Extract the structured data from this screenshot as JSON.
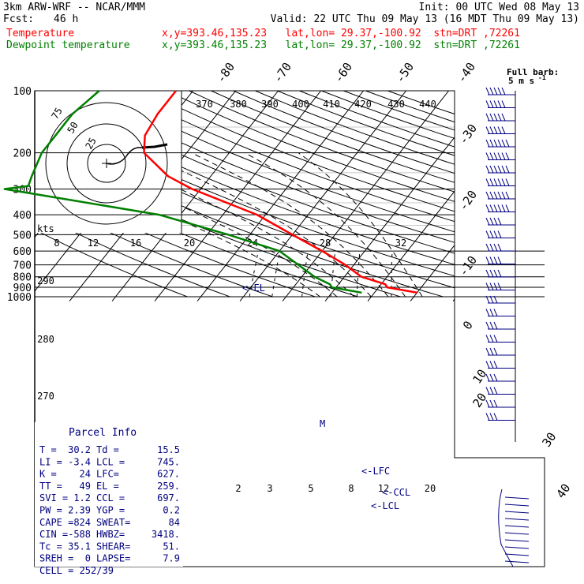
{
  "header": {
    "model": "3km ARW-WRF -- NCAR/MMM",
    "init": "Init: 00 UTC Wed 08 May 13",
    "fcst_label": "Fcst:",
    "fcst_value": "46 h",
    "valid": "Valid: 22 UTC Thu 09 May 13 (16 MDT Thu 09 May 13)",
    "temp_label": "Temperature",
    "temp_loc": "x,y=393.46,135.23   lat,lon= 29.37,-100.92  stn=DRT ,72261",
    "dew_label": "Dewpoint temperature",
    "dew_loc": "x,y=393.46,135.23   lat,lon= 29.37,-100.92  stn=DRT ,72261"
  },
  "colors": {
    "temperature": "#ff0000",
    "dewpoint": "#008000",
    "index_text": "#000080",
    "axes": "#000000"
  },
  "barb_legend": {
    "title": "Full barb:",
    "value": "5 m s",
    "superscript": "-1"
  },
  "parcel": {
    "title": "Parcel Info",
    "rows": [
      [
        "T  =",
        "30.2",
        "Td =",
        "15.5"
      ],
      [
        "LI =",
        "-3.4",
        "LCL =",
        "745."
      ],
      [
        "K  =",
        "24",
        "LFC=",
        "627."
      ],
      [
        "TT =",
        "49",
        "EL =",
        "259."
      ],
      [
        "SVI =",
        "1.2",
        "CCL =",
        "697."
      ],
      [
        "PW =",
        "2.39",
        "YGP =",
        "0.2"
      ],
      [
        "CAPE =",
        "824",
        "SWEAT=",
        "84"
      ],
      [
        "CIN =",
        "-588",
        "HWBZ=",
        "3418."
      ],
      [
        "Tc =",
        "35.1",
        "SHEAR=",
        "51."
      ],
      [
        "SREH =",
        "0",
        "LAPSE=",
        "7.9"
      ],
      [
        "CELL = 252/39",
        "",
        "",
        ""
      ]
    ]
  },
  "annotations": {
    "el": "<-EL",
    "lfc": "<-LFC",
    "ccl": "<-CCL",
    "lcl": "<-LCL",
    "m": "M"
  },
  "hodograph": {
    "kts_label": "kts",
    "ring_labels": [
      "75",
      "50",
      "25"
    ],
    "speed_labels": [
      "8",
      "12",
      "16",
      "20",
      "24",
      "28",
      "32"
    ]
  },
  "chart_data": {
    "type": "line",
    "title": "",
    "y_label": "",
    "pressure_levels_hPa": [
      100,
      200,
      300,
      400,
      500,
      600,
      700,
      800,
      900,
      1000
    ],
    "skewed_temperature_labels_C": [
      "-80",
      "-70",
      "-60",
      "-50",
      "-40",
      "-30",
      "-20",
      "-10",
      "0",
      "10",
      "20",
      "30",
      "40"
    ],
    "theta_labels_K": [
      "370",
      "380",
      "390",
      "400",
      "410",
      "420",
      "430",
      "440"
    ],
    "theta_labels_lower_K": [
      "290",
      "280",
      "270"
    ],
    "mixing_ratio_labels_gkg": [
      "2",
      "3",
      "5",
      "8",
      "12",
      "20"
    ],
    "series": [
      {
        "name": "Temperature",
        "pressure": [
          100,
          130,
          165,
          200,
          260,
          300,
          400,
          500,
          600,
          700,
          800,
          870,
          900,
          955
        ],
        "value": [
          -64,
          -64,
          -63,
          -60,
          -50,
          -42,
          -22,
          -10,
          0,
          8,
          14,
          21,
          22,
          30
        ]
      },
      {
        "name": "Dewpoint temperature",
        "pressure": [
          100,
          130,
          165,
          200,
          260,
          290,
          300,
          400,
          500,
          600,
          700,
          800,
          870,
          900,
          955
        ],
        "value": [
          -82,
          -84,
          -84,
          -84,
          -82,
          -81,
          -86,
          -45,
          -25,
          -10,
          -3,
          3,
          8,
          9,
          17
        ]
      }
    ]
  }
}
